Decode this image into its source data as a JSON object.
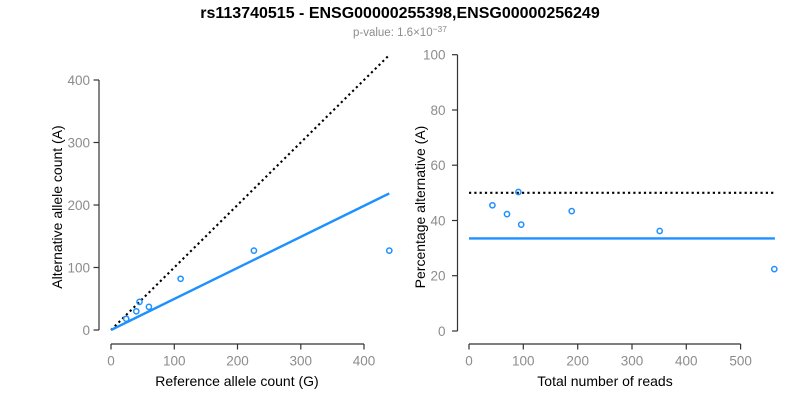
{
  "title": "rs113740515 - ENSG00000255398,ENSG00000256249",
  "subtitle": {
    "prefix": "p-value: 1.6×10",
    "exponent": "−37"
  },
  "colors": {
    "accent_blue": "#1E90FF",
    "reference_black": "#000000",
    "axis": "#333333",
    "tick_label_gray": "#8c8c8c",
    "subtitle_gray": "#8c8c8c",
    "background": "#ffffff"
  },
  "chart_data": [
    {
      "type": "scatter",
      "position": "left",
      "xlabel": "Reference allele count (G)",
      "ylabel": "Alternative allele count (A)",
      "xticks": [
        0,
        100,
        200,
        300,
        400
      ],
      "yticks": [
        0,
        100,
        200,
        300,
        400
      ],
      "xlim": [
        -18,
        457
      ],
      "ylim": [
        -24,
        442
      ],
      "grid": false,
      "legend": "none",
      "points": [
        [
          24,
          18
        ],
        [
          40,
          30
        ],
        [
          45,
          45
        ],
        [
          60,
          37
        ],
        [
          110,
          82
        ],
        [
          226,
          127
        ],
        [
          440,
          127
        ]
      ],
      "lines": [
        {
          "name": "identity-dotted-line",
          "style": "dotted",
          "color": "#000000",
          "from": [
            0,
            0
          ],
          "to": [
            440,
            440
          ]
        },
        {
          "name": "fit-line",
          "style": "solid",
          "color": "#1E90FF",
          "from": [
            0,
            0
          ],
          "to": [
            440,
            218.5
          ]
        }
      ]
    },
    {
      "type": "scatter",
      "position": "right",
      "xlabel": "Total number of reads",
      "ylabel": "Percentage alternative (A)",
      "xticks": [
        0,
        100,
        200,
        300,
        400,
        500
      ],
      "yticks": [
        0,
        20,
        40,
        60,
        80,
        100
      ],
      "xlim": [
        -22,
        590
      ],
      "ylim": [
        -5,
        105
      ],
      "grid": false,
      "legend": "none",
      "points": [
        [
          43,
          45.5
        ],
        [
          70,
          42.3
        ],
        [
          91,
          50.3
        ],
        [
          96,
          38.5
        ],
        [
          189,
          43.4
        ],
        [
          351,
          36.2
        ],
        [
          562,
          22.4
        ]
      ],
      "lines": [
        {
          "name": "fifty-percent-dotted-line",
          "style": "dotted",
          "color": "#000000",
          "from": [
            0,
            50
          ],
          "to": [
            562,
            50
          ]
        },
        {
          "name": "mean-percentage-line",
          "style": "solid",
          "color": "#1E90FF",
          "from": [
            0,
            33.5
          ],
          "to": [
            563,
            33.5
          ]
        }
      ]
    }
  ]
}
